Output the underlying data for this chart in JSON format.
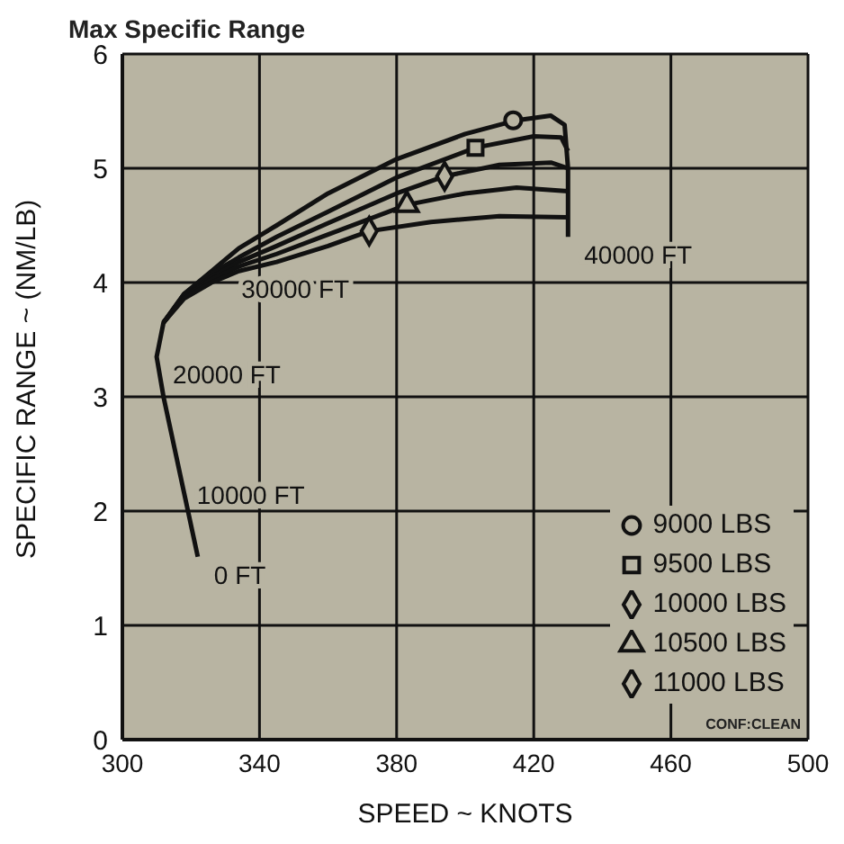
{
  "chart_data": {
    "type": "line",
    "title": "Max Specific Range",
    "xlabel": "SPEED ~ KNOTS",
    "ylabel": "SPECIFIC RANGE ~ (NM/LB)",
    "xlim": [
      300,
      500
    ],
    "xticks": [
      300,
      340,
      380,
      420,
      460,
      500
    ],
    "ylim": [
      0,
      6
    ],
    "yticks": [
      0,
      1,
      2,
      3,
      4,
      5,
      6
    ],
    "grid": true,
    "legend": "bottom right",
    "line_style": "solid",
    "series": [
      {
        "color": "#111111",
        "marker": "none",
        "x": [
          322,
          317,
          312,
          310,
          312,
          318,
          326,
          334,
          345,
          360,
          380,
          400,
          415,
          425,
          429,
          430,
          430
        ],
        "values": [
          1.6,
          2.3,
          3.0,
          3.35,
          3.65,
          3.9,
          4.1,
          4.3,
          4.5,
          4.78,
          5.08,
          5.3,
          5.42,
          5.46,
          5.38,
          5.0,
          4.4
        ]
      },
      {
        "color": "#111111",
        "marker": "none",
        "x": [
          312,
          318,
          326,
          334,
          345,
          360,
          380,
          403,
          420,
          428,
          430
        ],
        "values": [
          3.65,
          3.9,
          4.08,
          4.22,
          4.4,
          4.62,
          4.92,
          5.18,
          5.28,
          5.27,
          5.15
        ]
      },
      {
        "color": "#111111",
        "marker": "none",
        "x": [
          312,
          318,
          326,
          334,
          345,
          360,
          380,
          394,
          410,
          425,
          430
        ],
        "values": [
          3.65,
          3.88,
          4.05,
          4.18,
          4.32,
          4.52,
          4.78,
          4.93,
          5.03,
          5.05,
          5.0
        ]
      },
      {
        "color": "#111111",
        "marker": "none",
        "x": [
          312,
          318,
          326,
          334,
          345,
          360,
          383,
          400,
          415,
          430
        ],
        "values": [
          3.65,
          3.87,
          4.03,
          4.14,
          4.25,
          4.42,
          4.68,
          4.78,
          4.83,
          4.8
        ]
      },
      {
        "color": "#111111",
        "marker": "none",
        "x": [
          312,
          318,
          326,
          334,
          345,
          360,
          372,
          390,
          410,
          430
        ],
        "values": [
          3.65,
          3.86,
          4.0,
          4.1,
          4.18,
          4.32,
          4.45,
          4.53,
          4.58,
          4.57
        ]
      },
      {
        "type": "scatter",
        "name": "9000 LBS",
        "color": "#111111",
        "marker": "circle",
        "x": [
          414
        ],
        "values": [
          5.42
        ]
      },
      {
        "type": "scatter",
        "name": "9500 LBS",
        "color": "#111111",
        "marker": "square",
        "x": [
          403
        ],
        "values": [
          5.18
        ]
      },
      {
        "type": "scatter",
        "name": "10000 LBS",
        "color": "#111111",
        "marker": "diamond",
        "x": [
          394
        ],
        "values": [
          4.93
        ]
      },
      {
        "type": "scatter",
        "name": "10500 LBS",
        "color": "#111111",
        "marker": "triangle",
        "x": [
          383
        ],
        "values": [
          4.68
        ]
      },
      {
        "type": "scatter",
        "name": "11000 LBS",
        "color": "#111111",
        "marker": "diamond",
        "x": [
          372
        ],
        "values": [
          4.45
        ]
      }
    ],
    "annotations": [
      {
        "text": "0 FT",
        "x": 322,
        "y": 1.6
      },
      {
        "text": "10000 FT",
        "x": 317,
        "y": 2.3
      },
      {
        "text": "20000 FT",
        "x": 310,
        "y": 3.35
      },
      {
        "text": "30000 FT",
        "x": 330,
        "y": 4.1
      },
      {
        "text": "40000 FT",
        "x": 430,
        "y": 4.4
      },
      "CONF:CLEAN"
    ]
  }
}
